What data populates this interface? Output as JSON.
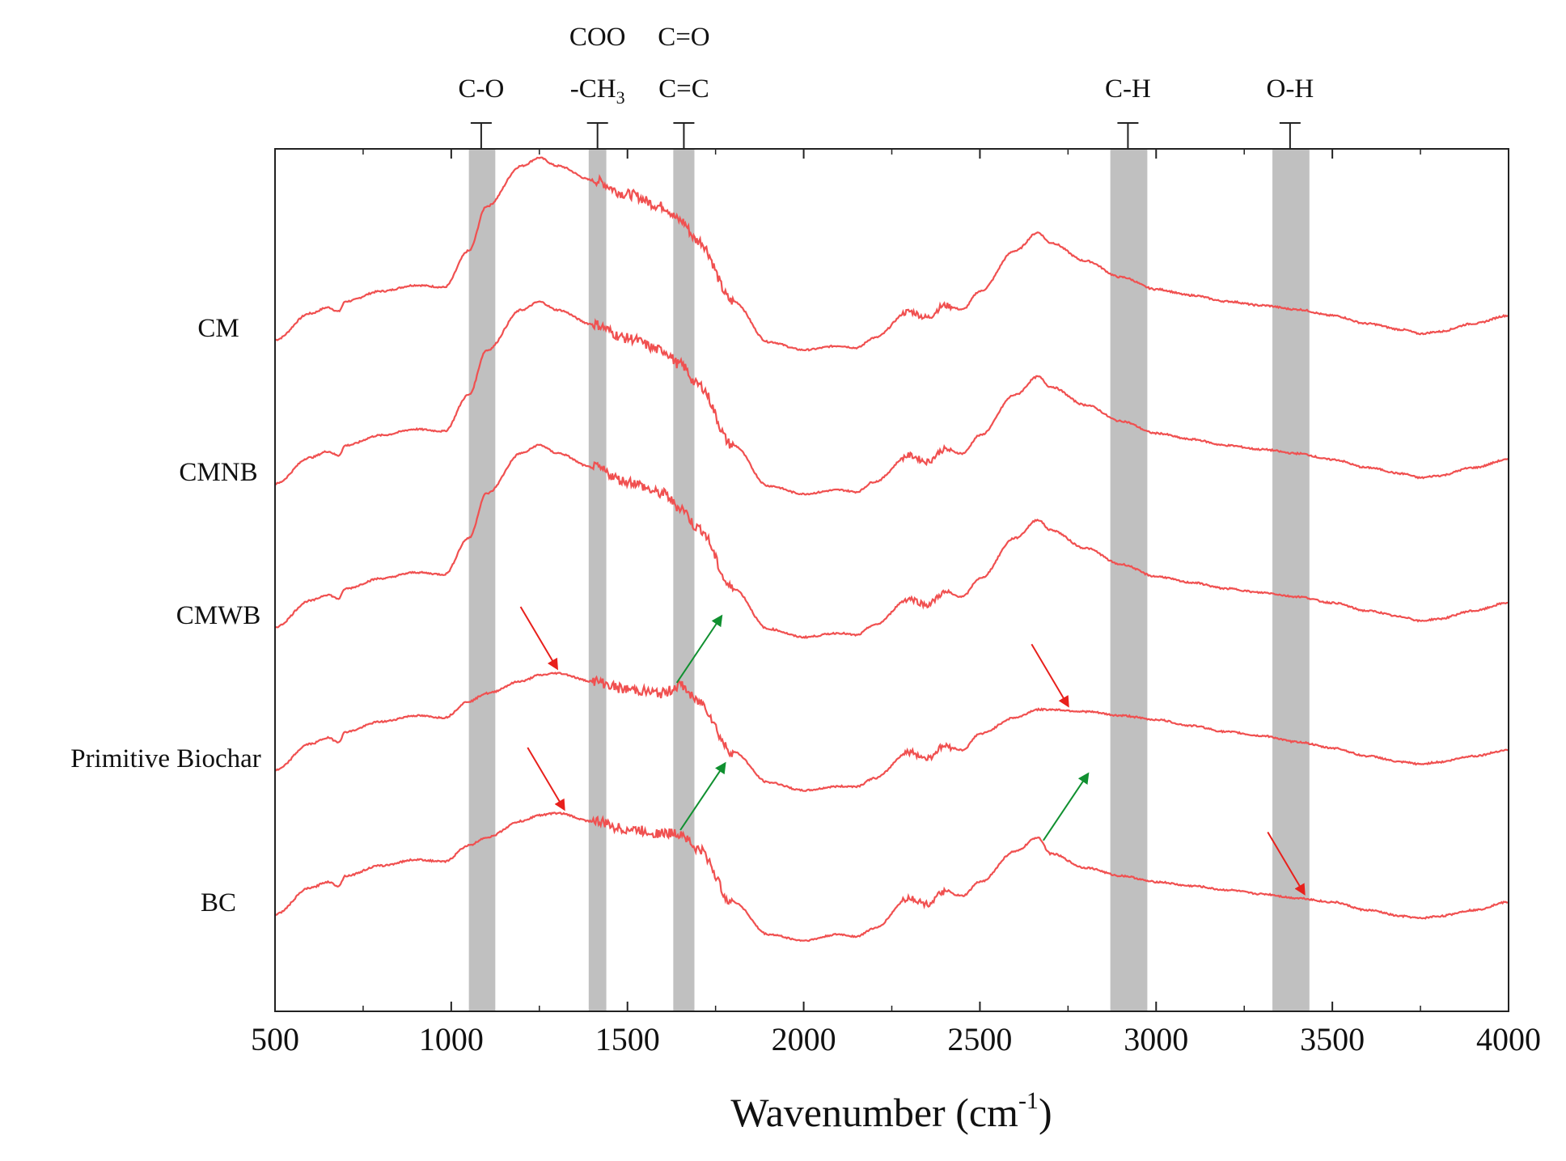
{
  "chart_data": {
    "type": "line",
    "title": "",
    "xlabel": "Wavenumber (cm",
    "xlabel_superscript": "-1",
    "xlabel_suffix": ")",
    "ylabel": "",
    "xlim": [
      500,
      4000
    ],
    "x_ticks": [
      500,
      1000,
      1500,
      2000,
      2500,
      3000,
      3500,
      4000
    ],
    "x_tick_labels": [
      "500",
      "1000",
      "1500",
      "2000",
      "2500",
      "3000",
      "3500",
      "4000"
    ],
    "y_axis": "stacked offset spectra, no tick labels",
    "grid": false,
    "line_color": "#f05050",
    "band_color": "#c0c0c0",
    "bands": [
      {
        "label_lines": [
          "C-O"
        ],
        "from": 1050,
        "to": 1125,
        "center": 1085
      },
      {
        "label_lines": [
          "COO",
          "-CH3"
        ],
        "from": 1390,
        "to": 1440,
        "center": 1415
      },
      {
        "label_lines": [
          "C=O",
          "C=C"
        ],
        "from": 1630,
        "to": 1690,
        "center": 1660
      },
      {
        "label_lines": [
          "C-H"
        ],
        "from": 2870,
        "to": 2975,
        "center": 2920
      },
      {
        "label_lines": [
          "O-H"
        ],
        "from": 3330,
        "to": 3435,
        "center": 3380
      }
    ],
    "x": [
      500,
      600,
      650,
      680,
      700,
      800,
      900,
      980,
      1050,
      1100,
      1200,
      1250,
      1300,
      1400,
      1500,
      1600,
      1650,
      1700,
      1800,
      1900,
      2000,
      2100,
      2150,
      2200,
      2300,
      2350,
      2400,
      2450,
      2500,
      2600,
      2665,
      2700,
      2800,
      2900,
      3000,
      3100,
      3200,
      3300,
      3400,
      3500,
      3600,
      3700,
      3750,
      3800,
      3900,
      4000
    ],
    "series": [
      {
        "name": "CM",
        "label": "CM",
        "values": [
          -0.04,
          0.09,
          0.12,
          0.1,
          0.15,
          0.2,
          0.23,
          0.22,
          0.4,
          0.62,
          0.82,
          0.86,
          0.82,
          0.75,
          0.68,
          0.62,
          0.55,
          0.45,
          0.15,
          -0.05,
          -0.09,
          -0.07,
          -0.08,
          -0.03,
          0.1,
          0.07,
          0.13,
          0.11,
          0.2,
          0.4,
          0.49,
          0.44,
          0.35,
          0.27,
          0.21,
          0.18,
          0.15,
          0.13,
          0.11,
          0.08,
          0.04,
          0.01,
          -0.01,
          0.0,
          0.04,
          0.08
        ]
      },
      {
        "name": "CMNB",
        "label": "CMNB",
        "values": [
          -0.04,
          0.09,
          0.12,
          0.1,
          0.15,
          0.2,
          0.23,
          0.22,
          0.4,
          0.62,
          0.82,
          0.86,
          0.82,
          0.75,
          0.68,
          0.62,
          0.55,
          0.45,
          0.15,
          -0.05,
          -0.09,
          -0.07,
          -0.08,
          -0.03,
          0.1,
          0.07,
          0.13,
          0.11,
          0.2,
          0.4,
          0.49,
          0.44,
          0.35,
          0.27,
          0.21,
          0.18,
          0.15,
          0.13,
          0.11,
          0.08,
          0.04,
          0.01,
          -0.01,
          0.0,
          0.04,
          0.08
        ]
      },
      {
        "name": "CMWB",
        "label": "CMWB",
        "values": [
          -0.04,
          0.09,
          0.12,
          0.1,
          0.15,
          0.2,
          0.23,
          0.22,
          0.4,
          0.62,
          0.82,
          0.86,
          0.82,
          0.75,
          0.68,
          0.62,
          0.55,
          0.45,
          0.15,
          -0.05,
          -0.09,
          -0.07,
          -0.08,
          -0.03,
          0.1,
          0.07,
          0.13,
          0.11,
          0.2,
          0.4,
          0.49,
          0.44,
          0.35,
          0.27,
          0.21,
          0.18,
          0.15,
          0.13,
          0.11,
          0.08,
          0.04,
          0.01,
          -0.01,
          0.0,
          0.04,
          0.08
        ]
      },
      {
        "name": "Primitive Biochar",
        "label": "Primitive Biochar",
        "values": [
          -0.04,
          0.09,
          0.12,
          0.1,
          0.15,
          0.2,
          0.23,
          0.22,
          0.3,
          0.34,
          0.4,
          0.43,
          0.44,
          0.4,
          0.36,
          0.34,
          0.38,
          0.3,
          0.05,
          -0.1,
          -0.14,
          -0.12,
          -0.12,
          -0.08,
          0.05,
          0.02,
          0.08,
          0.06,
          0.14,
          0.22,
          0.26,
          0.26,
          0.25,
          0.23,
          0.21,
          0.18,
          0.15,
          0.13,
          0.1,
          0.07,
          0.03,
          0.0,
          -0.01,
          0.0,
          0.03,
          0.06
        ]
      },
      {
        "name": "BC",
        "label": "BC",
        "values": [
          -0.04,
          0.09,
          0.12,
          0.1,
          0.15,
          0.2,
          0.23,
          0.22,
          0.3,
          0.34,
          0.42,
          0.45,
          0.46,
          0.42,
          0.38,
          0.36,
          0.36,
          0.28,
          0.02,
          -0.14,
          -0.17,
          -0.14,
          -0.15,
          -0.11,
          0.04,
          0.01,
          0.07,
          0.05,
          0.12,
          0.27,
          0.34,
          0.26,
          0.19,
          0.15,
          0.12,
          0.1,
          0.08,
          0.06,
          0.04,
          0.02,
          -0.02,
          -0.05,
          -0.06,
          -0.05,
          -0.02,
          0.02
        ]
      }
    ],
    "annotations": [
      {
        "series": "Primitive Biochar",
        "color": "red",
        "direction": "down",
        "x": 1300
      },
      {
        "series": "Primitive Biochar",
        "color": "green",
        "direction": "up",
        "x": 1640
      },
      {
        "series": "Primitive Biochar",
        "color": "red",
        "direction": "down",
        "x": 2750
      },
      {
        "series": "BC",
        "color": "red",
        "direction": "down",
        "x": 1320
      },
      {
        "series": "BC",
        "color": "green",
        "direction": "up",
        "x": 1650
      },
      {
        "series": "BC",
        "color": "green",
        "direction": "up",
        "x": 2680
      },
      {
        "series": "BC",
        "color": "red",
        "direction": "down",
        "x": 3420
      }
    ]
  }
}
